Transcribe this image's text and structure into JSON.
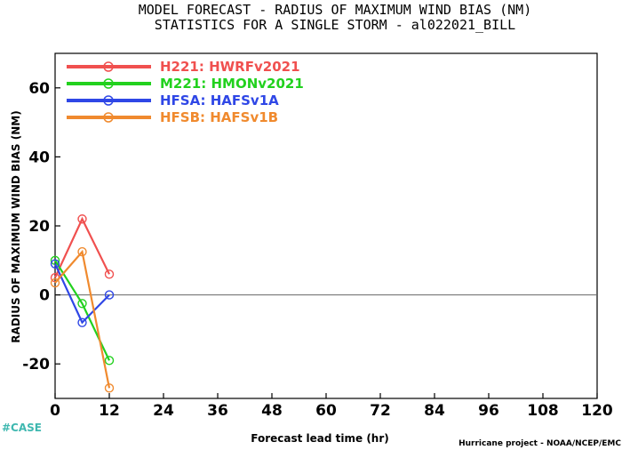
{
  "header": {
    "title_line1": "MODEL FORECAST - RADIUS OF MAXIMUM WIND BIAS (NM)",
    "title_line2": "STATISTICS FOR A SINGLE STORM - al022021_BILL"
  },
  "footer": {
    "case_tag": "#CASE",
    "credit": "Hurricane project - NOAA/NCEP/EMC"
  },
  "chart_data": {
    "type": "line",
    "xlabel": "Forecast lead time (hr)",
    "ylabel": "RADIUS OF MAXIMUM WIND BIAS (NM)",
    "xlim": [
      0,
      120
    ],
    "ylim": [
      -30,
      70
    ],
    "xticks": [
      0,
      12,
      24,
      36,
      48,
      60,
      72,
      84,
      96,
      108,
      120
    ],
    "yticks": [
      -20,
      0,
      20,
      40,
      60
    ],
    "zero_line": true,
    "grid": false,
    "legend_position": "top-left",
    "series": [
      {
        "name": "H221: HWRFv2021",
        "color": "#f0504f",
        "x": [
          0,
          6,
          12
        ],
        "y": [
          5,
          22,
          6
        ]
      },
      {
        "name": "M221: HMONv2021",
        "color": "#22d11e",
        "x": [
          0,
          6,
          12
        ],
        "y": [
          10,
          -2.5,
          -19
        ]
      },
      {
        "name": "HFSA: HAFSv1A",
        "color": "#2f47e6",
        "x": [
          0,
          6,
          12
        ],
        "y": [
          9,
          -8,
          0
        ]
      },
      {
        "name": "HFSB: HAFSv1B",
        "color": "#f08a2e",
        "x": [
          0,
          6,
          12
        ],
        "y": [
          3.5,
          12.5,
          -27
        ]
      }
    ]
  }
}
